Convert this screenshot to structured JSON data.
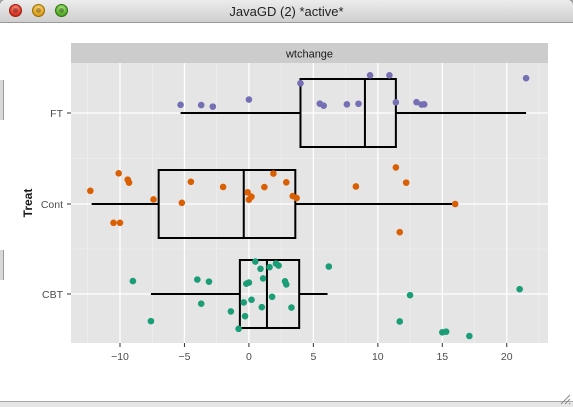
{
  "window": {
    "title": "JavaGD (2) *active*"
  },
  "chart_data": {
    "type": "boxplot",
    "facet_title": "wtchange",
    "ylabel": "Treat",
    "xlabel": "",
    "xlim": [
      -13.8,
      23.2
    ],
    "x_ticks": [
      -10,
      -5,
      0,
      5,
      10,
      15,
      20
    ],
    "x_tick_labels": [
      "−10",
      "−5",
      "0",
      "5",
      "10",
      "15",
      "20"
    ],
    "grid": true,
    "categories": [
      "CBT",
      "Cont",
      "FT"
    ],
    "series": [
      {
        "name": "FT",
        "color": "#7570b3",
        "box": {
          "whisker_low": -5.3,
          "q1": 4.0,
          "median": 9.0,
          "q3": 11.4,
          "whisker_high": 21.5
        },
        "points": [
          [
            -5.3,
            0.68
          ],
          [
            -3.7,
            0.66
          ],
          [
            -2.8,
            0.53
          ],
          [
            0.0,
            1.12
          ],
          [
            4.0,
            2.48
          ],
          [
            5.5,
            0.78
          ],
          [
            5.8,
            0.61
          ],
          [
            7.6,
            0.72
          ],
          [
            8.5,
            0.77
          ],
          [
            9.4,
            3.14
          ],
          [
            10.9,
            3.14
          ],
          [
            11.4,
            0.89
          ],
          [
            13.0,
            0.9
          ],
          [
            13.4,
            0.7
          ],
          [
            13.6,
            0.72
          ],
          [
            21.5,
            2.9
          ]
        ]
      },
      {
        "name": "Cont",
        "color": "#d95f02",
        "box": {
          "whisker_low": -12.2,
          "q1": -7.0,
          "median": -0.4,
          "q3": 3.6,
          "whisker_high": 16.0
        },
        "points": [
          [
            -12.3,
            1.1
          ],
          [
            -10.5,
            -1.57
          ],
          [
            -10.0,
            -1.57
          ],
          [
            -10.1,
            2.56
          ],
          [
            -9.3,
            1.78
          ],
          [
            -9.4,
            2.03
          ],
          [
            -7.4,
            0.38
          ],
          [
            -5.2,
            0.1
          ],
          [
            -4.5,
            1.85
          ],
          [
            -2.0,
            1.42
          ],
          [
            0.0,
            0.36
          ],
          [
            0.2,
            0.61
          ],
          [
            -0.1,
            0.97
          ],
          [
            1.2,
            1.41
          ],
          [
            1.9,
            2.54
          ],
          [
            2.9,
            1.81
          ],
          [
            3.4,
            0.66
          ],
          [
            3.7,
            0.5
          ],
          [
            8.3,
            1.46
          ],
          [
            11.4,
            3.05
          ],
          [
            11.7,
            -2.35
          ],
          [
            12.2,
            1.78
          ],
          [
            16.0,
            0.0
          ]
        ]
      },
      {
        "name": "CBT",
        "color": "#1b9e77",
        "box": {
          "whisker_low": -7.6,
          "q1": -0.7,
          "median": 1.4,
          "q3": 3.9,
          "whisker_high": 6.1
        },
        "points": [
          [
            -9.0,
            1.08
          ],
          [
            -7.6,
            -2.26
          ],
          [
            -4.0,
            1.2
          ],
          [
            -3.7,
            -0.81
          ],
          [
            -3.1,
            1.03
          ],
          [
            -1.4,
            -1.45
          ],
          [
            -0.8,
            -2.9
          ],
          [
            -0.4,
            -0.7
          ],
          [
            -0.3,
            -1.85
          ],
          [
            -0.2,
            0.86
          ],
          [
            0.0,
            0.95
          ],
          [
            0.2,
            -0.48
          ],
          [
            0.5,
            2.7
          ],
          [
            0.9,
            2.1
          ],
          [
            1.0,
            -1.1
          ],
          [
            1.1,
            1.3
          ],
          [
            1.6,
            2.24
          ],
          [
            1.8,
            -0.23
          ],
          [
            2.1,
            2.54
          ],
          [
            2.3,
            2.37
          ],
          [
            2.8,
            1.06
          ],
          [
            2.9,
            0.8
          ],
          [
            3.3,
            -1.13
          ],
          [
            6.2,
            2.29
          ],
          [
            11.7,
            -2.29
          ],
          [
            12.5,
            -0.1
          ],
          [
            15.0,
            -3.19
          ],
          [
            15.3,
            -3.14
          ],
          [
            17.1,
            -3.5
          ],
          [
            21.0,
            0.4
          ]
        ]
      }
    ]
  }
}
